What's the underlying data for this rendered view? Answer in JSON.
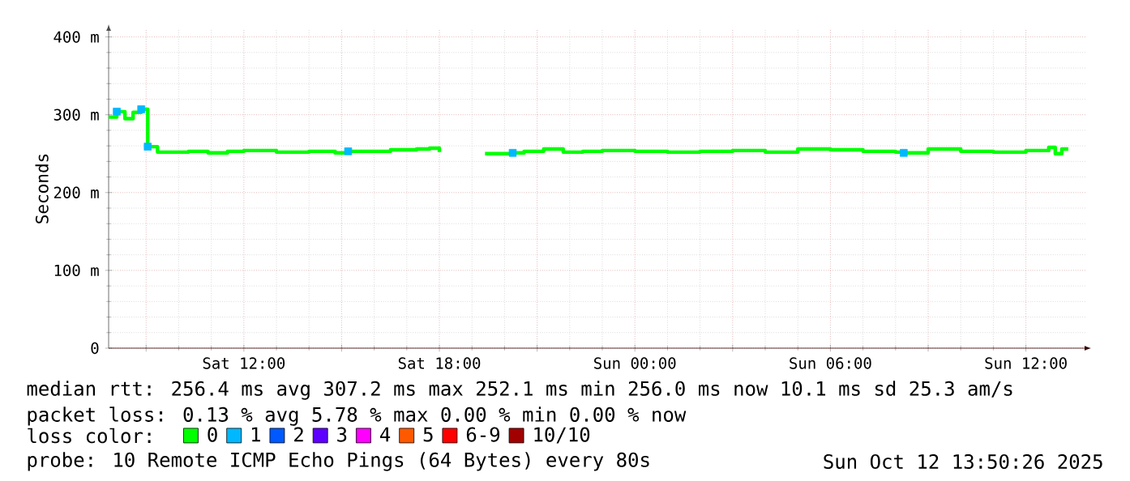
{
  "chart_data": {
    "type": "step",
    "ylabel": "Seconds",
    "legend_title": "loss color:",
    "legend": "bottom",
    "grid": true,
    "marker": "none",
    "x": [
      "2025-10-11T07:51",
      "2025-10-11T08:06",
      "2025-10-11T08:21",
      "2025-10-11T08:36",
      "2025-10-11T08:51",
      "2025-10-11T09:03",
      "2025-10-11T09:21",
      "2025-10-11T10:18",
      "2025-10-11T10:54",
      "2025-10-11T11:30",
      "2025-10-11T12:00",
      "2025-10-11T13:00",
      "2025-10-11T14:00",
      "2025-10-11T14:48",
      "2025-10-11T15:12",
      "2025-10-11T15:27",
      "2025-10-11T16:30",
      "2025-10-11T17:18",
      "2025-10-11T17:42",
      "2025-10-11T18:00",
      "2025-10-11T18:54",
      "2025-10-11T19:24",
      "2025-10-11T20:15",
      "2025-10-11T20:36",
      "2025-10-11T21:12",
      "2025-10-11T21:48",
      "2025-10-11T22:24",
      "2025-10-11T23:00",
      "2025-10-12T00:00",
      "2025-10-12T01:00",
      "2025-10-12T02:00",
      "2025-10-12T03:00",
      "2025-10-12T04:00",
      "2025-10-12T05:00",
      "2025-10-12T06:00",
      "2025-10-12T07:00",
      "2025-10-12T08:00",
      "2025-10-12T08:15",
      "2025-10-12T09:00",
      "2025-10-12T10:00",
      "2025-10-12T11:00",
      "2025-10-12T12:00",
      "2025-10-12T12:42",
      "2025-10-12T12:54",
      "2025-10-12T13:06",
      "2025-10-12T13:18"
    ],
    "series": [
      {
        "name": "0",
        "color": "#00ff00",
        "values": [
          297,
          304,
          295,
          303,
          307,
          259,
          252,
          253,
          251,
          253,
          254,
          252,
          253,
          251,
          253,
          253,
          255,
          256,
          257,
          252,
          null,
          250,
          251,
          253,
          256,
          252,
          253,
          254,
          253,
          252,
          253,
          254,
          252,
          256,
          255,
          253,
          252,
          251,
          256,
          253,
          252,
          254,
          258,
          250,
          256,
          256
        ]
      },
      {
        "name": "1",
        "color": "#00b8ff",
        "type": "scatter",
        "marker": "square",
        "values": [
          null,
          304,
          null,
          null,
          307,
          259,
          null,
          null,
          null,
          null,
          null,
          null,
          null,
          null,
          253,
          null,
          null,
          null,
          null,
          null,
          null,
          null,
          251,
          null,
          null,
          null,
          null,
          null,
          null,
          null,
          null,
          null,
          null,
          null,
          null,
          null,
          null,
          251,
          null,
          null,
          null,
          null,
          null,
          null,
          null,
          null
        ]
      },
      {
        "name": "2",
        "color": "#0059ff",
        "values": [
          null,
          null,
          null,
          null,
          null,
          null,
          null,
          null,
          null,
          null,
          null,
          null,
          null,
          null,
          null,
          null,
          null,
          null,
          null,
          null,
          null,
          null,
          null,
          null,
          null,
          null,
          null,
          null,
          null,
          null,
          null,
          null,
          null,
          null,
          null,
          null,
          null,
          null,
          null,
          null,
          null,
          null,
          null,
          null,
          null,
          null
        ]
      },
      {
        "name": "3",
        "color": "#5e00ff",
        "values": [
          null,
          null,
          null,
          null,
          null,
          null,
          null,
          null,
          null,
          null,
          null,
          null,
          null,
          null,
          null,
          null,
          null,
          null,
          null,
          null,
          null,
          null,
          null,
          null,
          null,
          null,
          null,
          null,
          null,
          null,
          null,
          null,
          null,
          null,
          null,
          null,
          null,
          null,
          null,
          null,
          null,
          null,
          null,
          null,
          null,
          null
        ]
      },
      {
        "name": "4",
        "color": "#ff00ff",
        "values": [
          null,
          null,
          null,
          null,
          null,
          null,
          null,
          null,
          null,
          null,
          null,
          null,
          null,
          null,
          null,
          null,
          null,
          null,
          null,
          null,
          null,
          null,
          null,
          null,
          null,
          null,
          null,
          null,
          null,
          null,
          null,
          null,
          null,
          null,
          null,
          null,
          null,
          null,
          null,
          null,
          null,
          null,
          null,
          null,
          null,
          null
        ]
      },
      {
        "name": "5",
        "color": "#ff5900",
        "values": [
          null,
          null,
          null,
          null,
          null,
          null,
          null,
          null,
          null,
          null,
          null,
          null,
          null,
          null,
          null,
          null,
          null,
          null,
          null,
          null,
          null,
          null,
          null,
          null,
          null,
          null,
          null,
          null,
          null,
          null,
          null,
          null,
          null,
          null,
          null,
          null,
          null,
          null,
          null,
          null,
          null,
          null,
          null,
          null,
          null,
          null
        ]
      },
      {
        "name": "6-9",
        "color": "#ff0000",
        "values": [
          null,
          null,
          null,
          null,
          null,
          null,
          null,
          null,
          null,
          null,
          null,
          null,
          null,
          null,
          null,
          null,
          null,
          null,
          null,
          null,
          null,
          null,
          null,
          null,
          null,
          null,
          null,
          null,
          null,
          null,
          null,
          null,
          null,
          null,
          null,
          null,
          null,
          null,
          null,
          null,
          null,
          null,
          null,
          null,
          null,
          null
        ]
      },
      {
        "name": "10/10",
        "color": "#a10000",
        "values": [
          null,
          null,
          null,
          null,
          null,
          null,
          null,
          null,
          null,
          null,
          null,
          null,
          null,
          null,
          null,
          null,
          null,
          null,
          null,
          null,
          null,
          null,
          null,
          null,
          null,
          null,
          null,
          null,
          null,
          null,
          null,
          null,
          null,
          null,
          null,
          null,
          null,
          null,
          null,
          null,
          null,
          null,
          null,
          null,
          null,
          null
        ]
      }
    ],
    "xlim": [
      "2025-10-11T07:51",
      "2025-10-12T13:51"
    ],
    "xticks": [
      {
        "value": "2025-10-11T09:00",
        "label": null
      },
      {
        "value": "2025-10-11T12:00",
        "label": "Sat 12:00"
      },
      {
        "value": "2025-10-11T15:00",
        "label": null
      },
      {
        "value": "2025-10-11T18:00",
        "label": "Sat 18:00"
      },
      {
        "value": "2025-10-11T21:00",
        "label": null
      },
      {
        "value": "2025-10-12T00:00",
        "label": "Sun 00:00"
      },
      {
        "value": "2025-10-12T03:00",
        "label": null
      },
      {
        "value": "2025-10-12T06:00",
        "label": "Sun 06:00"
      },
      {
        "value": "2025-10-12T09:00",
        "label": null
      },
      {
        "value": "2025-10-12T12:00",
        "label": "Sun 12:00"
      }
    ],
    "ylim": [
      0,
      410
    ],
    "yticks": [
      0,
      {
        "value": 100,
        "label": "100 m"
      },
      {
        "value": 200,
        "label": "200 m"
      },
      {
        "value": 300,
        "label": "300 m"
      },
      {
        "value": 400,
        "label": "400 m"
      }
    ],
    "annotations": [
      "median rtt:  256.4 ms avg  307.2 ms max  252.1 ms min  256.0 ms now  10.1 ms sd  25.3   am/s",
      "packet loss: 0.13 % avg  5.78 % max  0.00 % min  0.00 % now",
      "probe:       10 Remote ICMP Echo Pings (64 Bytes) every 80s",
      "Sun Oct 12 13:50:26 2025"
    ]
  }
}
